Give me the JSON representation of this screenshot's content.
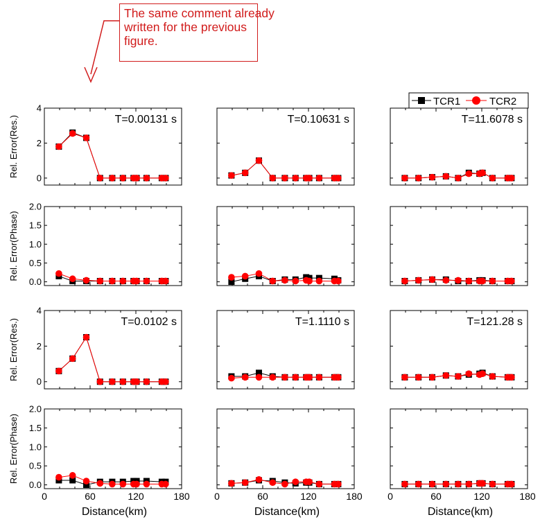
{
  "comment": {
    "lines": [
      "The same comment already",
      "written for the previous",
      "figure."
    ],
    "color": "#d11b1b"
  },
  "legend": {
    "items": [
      {
        "label": "TCR1",
        "color": "#000000",
        "marker": "square"
      },
      {
        "label": "TCR2",
        "color": "#ff0000",
        "marker": "circle"
      }
    ]
  },
  "chart_data": {
    "type": "line",
    "layout": {
      "rows": 4,
      "cols": 3
    },
    "xlabel": "Distance(km)",
    "xlim": [
      0,
      180
    ],
    "xticks": [
      0,
      60,
      120,
      180
    ],
    "x": [
      19,
      37,
      55,
      73,
      89,
      103,
      117,
      121,
      134,
      154,
      159
    ],
    "series_names": [
      "TCR1",
      "TCR2"
    ],
    "series_colors": [
      "#000000",
      "#ff0000"
    ],
    "row_settings": [
      {
        "ylabel": "Rel. Error(Res.)",
        "ylim": [
          -0.4,
          4
        ],
        "yticks": [
          "0",
          "2",
          "4"
        ],
        "ytick_values": [
          0,
          2,
          4
        ]
      },
      {
        "ylabel": "Rel. Error(Phase)",
        "ylim": [
          -0.1,
          2.0
        ],
        "yticks": [
          "0.0",
          "0.5",
          "1.0",
          "1.5",
          "2.0"
        ],
        "ytick_values": [
          0,
          0.5,
          1.0,
          1.5,
          2.0
        ]
      },
      {
        "ylabel": "Rel. Error(Res.)",
        "ylim": [
          -0.4,
          4
        ],
        "yticks": [
          "0",
          "2",
          "4"
        ],
        "ytick_values": [
          0,
          2,
          4
        ]
      },
      {
        "ylabel": "Rel. Error(Phase)",
        "ylim": [
          -0.1,
          2.0
        ],
        "yticks": [
          "0.0",
          "0.5",
          "1.0",
          "1.5",
          "2.0"
        ],
        "ytick_values": [
          0,
          0.5,
          1.0,
          1.5,
          2.0
        ]
      }
    ],
    "panels": [
      {
        "row": 0,
        "col": 0,
        "annotation": "T=0.00131 s",
        "series": [
          {
            "name": "TCR1",
            "values": [
              1.8,
              2.6,
              2.3,
              0,
              0,
              0,
              0,
              0,
              0,
              0,
              0
            ]
          },
          {
            "name": "TCR2",
            "values": [
              1.8,
              2.55,
              2.3,
              0,
              0,
              0,
              0,
              0,
              0,
              0,
              0
            ]
          }
        ]
      },
      {
        "row": 0,
        "col": 1,
        "annotation": "T=0.10631 s",
        "series": [
          {
            "name": "TCR1",
            "values": [
              0.15,
              0.3,
              1.0,
              0,
              0,
              0,
              0,
              0,
              0,
              0,
              0
            ]
          },
          {
            "name": "TCR2",
            "values": [
              0.15,
              0.3,
              1.0,
              0,
              0,
              0,
              0,
              0,
              0,
              0,
              0
            ]
          }
        ]
      },
      {
        "row": 0,
        "col": 2,
        "annotation": "T=11.6078 s",
        "series": [
          {
            "name": "TCR1",
            "values": [
              0,
              0,
              0.05,
              0.1,
              0,
              0.3,
              0.25,
              0.3,
              0,
              0,
              0
            ]
          },
          {
            "name": "TCR2",
            "values": [
              0,
              0,
              0.05,
              0.1,
              0,
              0.25,
              0.25,
              0.3,
              0,
              0,
              0
            ]
          }
        ]
      },
      {
        "row": 1,
        "col": 0,
        "annotation": "",
        "series": [
          {
            "name": "TCR1",
            "values": [
              0.15,
              0.02,
              0.02,
              0.02,
              0.02,
              0.02,
              0.02,
              0.02,
              0.02,
              0.02,
              0.02
            ]
          },
          {
            "name": "TCR2",
            "values": [
              0.22,
              0.08,
              0.04,
              0.02,
              0.02,
              0.02,
              0.02,
              0.02,
              0.02,
              0.02,
              0.02
            ]
          }
        ]
      },
      {
        "row": 1,
        "col": 1,
        "annotation": "",
        "series": [
          {
            "name": "TCR1",
            "values": [
              0.0,
              0.08,
              0.15,
              0.02,
              0.06,
              0.06,
              0.12,
              0.1,
              0.1,
              0.08,
              0.04
            ]
          },
          {
            "name": "TCR2",
            "values": [
              0.12,
              0.15,
              0.22,
              0.02,
              0.04,
              0.02,
              0.04,
              0.02,
              0.02,
              0.02,
              0.02
            ]
          }
        ]
      },
      {
        "row": 1,
        "col": 2,
        "annotation": "",
        "series": [
          {
            "name": "TCR1",
            "values": [
              0.02,
              0.04,
              0.06,
              0.06,
              0.02,
              0.02,
              0.04,
              0.04,
              0.02,
              0.02,
              0.02
            ]
          },
          {
            "name": "TCR2",
            "values": [
              0.02,
              0.04,
              0.06,
              0.04,
              0.04,
              0.02,
              0.02,
              0.02,
              0.02,
              0.02,
              0.02
            ]
          }
        ]
      },
      {
        "row": 2,
        "col": 0,
        "annotation": "T=0.0102 s",
        "series": [
          {
            "name": "TCR1",
            "values": [
              0.6,
              1.3,
              2.5,
              0,
              0,
              0,
              0,
              0,
              0,
              0,
              0
            ]
          },
          {
            "name": "TCR2",
            "values": [
              0.6,
              1.3,
              2.5,
              0,
              0,
              0,
              0,
              0,
              0,
              0,
              0
            ]
          }
        ]
      },
      {
        "row": 2,
        "col": 1,
        "annotation": "T=1.1110 s",
        "series": [
          {
            "name": "TCR1",
            "values": [
              0.3,
              0.3,
              0.5,
              0.3,
              0.25,
              0.25,
              0.25,
              0.25,
              0.25,
              0.25,
              0.25
            ]
          },
          {
            "name": "TCR2",
            "values": [
              0.2,
              0.25,
              0.25,
              0.25,
              0.25,
              0.25,
              0.25,
              0.25,
              0.25,
              0.25,
              0.25
            ]
          }
        ]
      },
      {
        "row": 2,
        "col": 2,
        "annotation": "T=121.28 s",
        "series": [
          {
            "name": "TCR1",
            "values": [
              0.25,
              0.25,
              0.25,
              0.35,
              0.3,
              0.4,
              0.45,
              0.5,
              0.3,
              0.25,
              0.25
            ]
          },
          {
            "name": "TCR2",
            "values": [
              0.25,
              0.25,
              0.25,
              0.35,
              0.3,
              0.45,
              0.4,
              0.45,
              0.3,
              0.25,
              0.25
            ]
          }
        ]
      },
      {
        "row": 3,
        "col": 0,
        "annotation": "",
        "series": [
          {
            "name": "TCR1",
            "values": [
              0.12,
              0.12,
              0.0,
              0.08,
              0.08,
              0.08,
              0.1,
              0.1,
              0.1,
              0.08,
              0.08
            ]
          },
          {
            "name": "TCR2",
            "values": [
              0.2,
              0.25,
              0.1,
              0.04,
              0.02,
              0.02,
              0.02,
              0.02,
              0.02,
              0.02,
              0.02
            ]
          }
        ]
      },
      {
        "row": 3,
        "col": 1,
        "annotation": "",
        "series": [
          {
            "name": "TCR1",
            "values": [
              0.04,
              0.06,
              0.12,
              0.1,
              0.06,
              0.04,
              0.06,
              0.06,
              0.02,
              0.02,
              0.02
            ]
          },
          {
            "name": "TCR2",
            "values": [
              0.04,
              0.06,
              0.14,
              0.06,
              0.02,
              0.08,
              0.08,
              0.08,
              0.02,
              0.02,
              0.02
            ]
          }
        ]
      },
      {
        "row": 3,
        "col": 2,
        "annotation": "",
        "series": [
          {
            "name": "TCR1",
            "values": [
              0.02,
              0.02,
              0.02,
              0.02,
              0.02,
              0.02,
              0.04,
              0.04,
              0.02,
              0.02,
              0.02
            ]
          },
          {
            "name": "TCR2",
            "values": [
              0.02,
              0.02,
              0.02,
              0.02,
              0.02,
              0.02,
              0.04,
              0.04,
              0.02,
              0.02,
              0.02
            ]
          }
        ]
      }
    ]
  }
}
